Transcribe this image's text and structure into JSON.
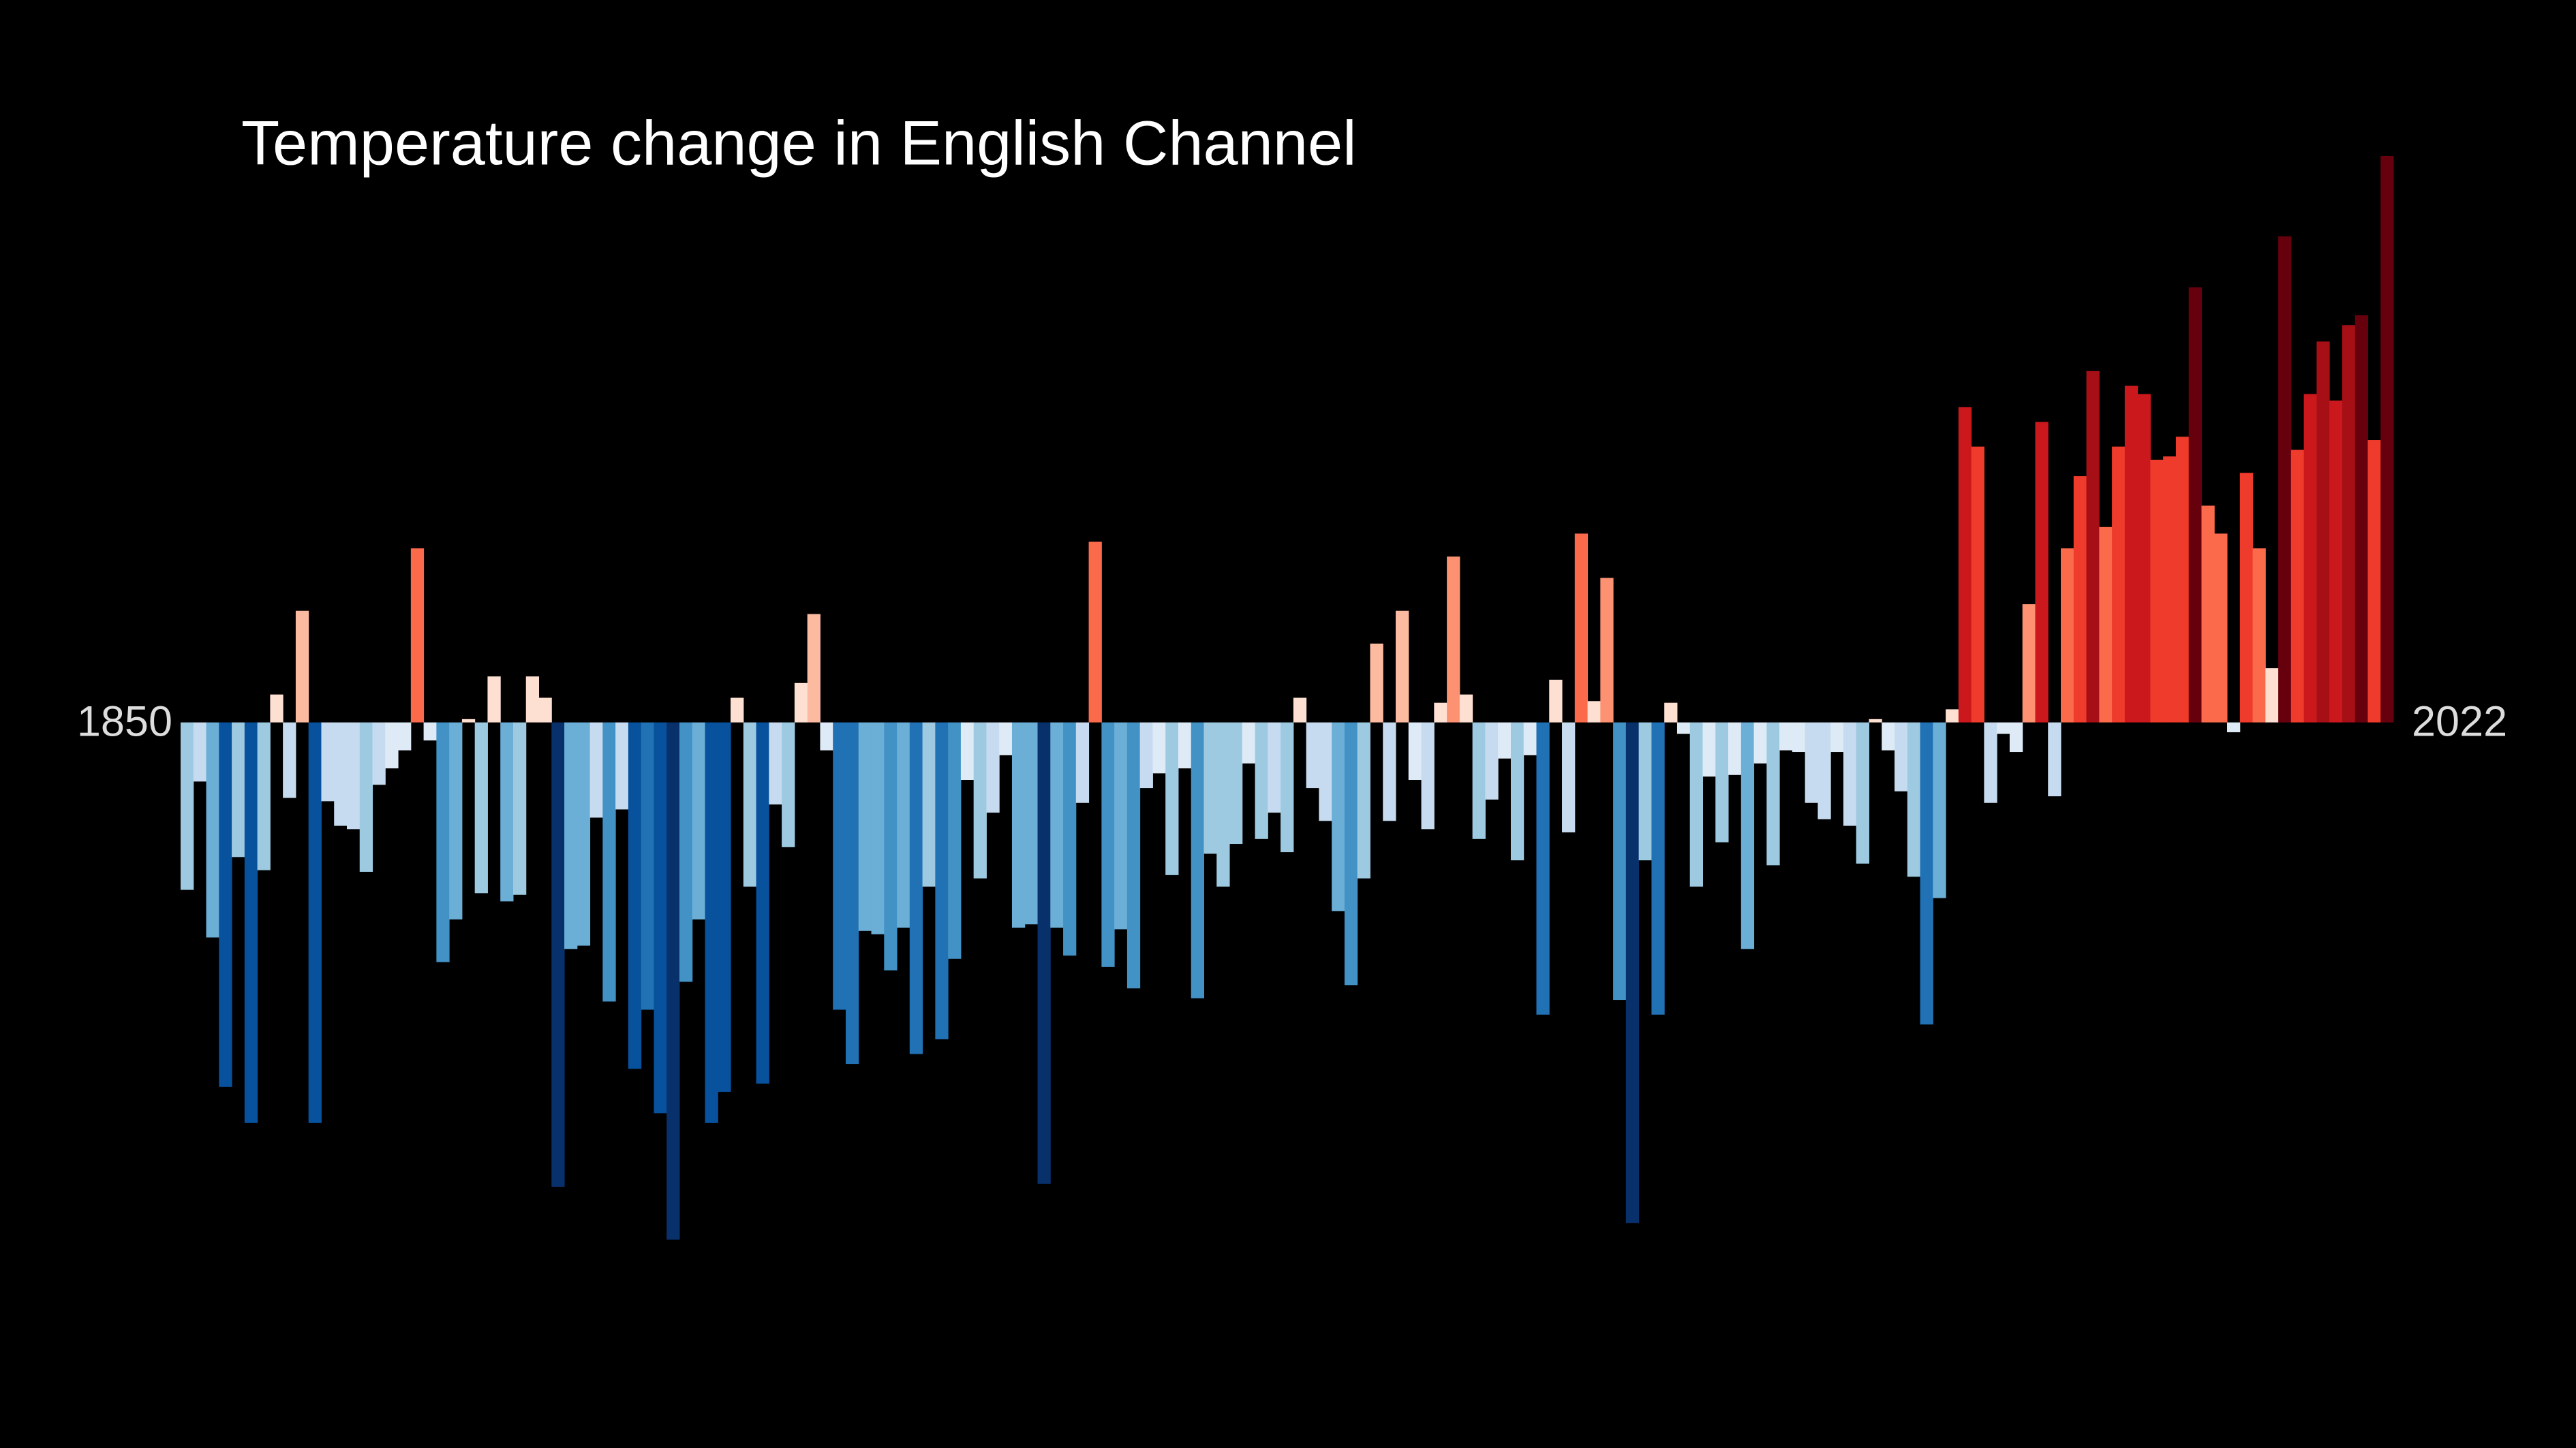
{
  "chart_data": {
    "type": "bar",
    "title": "Temperature change in English Channel",
    "categories": [
      "1850",
      null,
      null,
      null,
      null,
      null,
      null,
      null,
      null,
      null,
      null,
      null,
      null,
      null,
      null,
      null,
      null,
      null,
      null,
      null,
      null,
      null,
      null,
      null,
      null,
      null,
      null,
      null,
      null,
      null,
      null,
      null,
      null,
      null,
      null,
      null,
      null,
      null,
      null,
      null,
      null,
      null,
      null,
      null,
      null,
      null,
      null,
      null,
      null,
      null,
      null,
      null,
      null,
      null,
      null,
      null,
      null,
      null,
      null,
      null,
      null,
      null,
      null,
      null,
      null,
      null,
      null,
      null,
      null,
      null,
      null,
      null,
      null,
      null,
      null,
      null,
      null,
      null,
      null,
      null,
      null,
      null,
      null,
      null,
      null,
      null,
      null,
      null,
      null,
      null,
      null,
      null,
      null,
      null,
      null,
      null,
      null,
      null,
      null,
      null,
      null,
      null,
      null,
      null,
      null,
      null,
      null,
      null,
      null,
      null,
      null,
      null,
      null,
      null,
      null,
      null,
      null,
      null,
      null,
      null,
      null,
      null,
      null,
      null,
      null,
      null,
      null,
      null,
      null,
      null,
      null,
      null,
      null,
      null,
      null,
      null,
      null,
      null,
      null,
      null,
      null,
      null,
      null,
      null,
      null,
      null,
      null,
      null,
      null,
      null,
      null,
      null,
      null,
      null,
      null,
      null,
      null,
      null,
      null,
      null,
      null,
      null,
      null,
      null,
      null,
      null,
      null,
      null,
      null,
      null,
      null,
      null,
      "2022"
    ],
    "values": [
      -0.51,
      -0.18,
      -0.655,
      -1.11,
      -0.41,
      -1.22,
      -0.45,
      0.085,
      -0.23,
      0.34,
      -1.22,
      -0.24,
      -0.315,
      -0.325,
      -0.455,
      -0.19,
      -0.14,
      -0.085,
      0.53,
      -0.055,
      -0.73,
      -0.6,
      0.01,
      -0.52,
      0.14,
      -0.545,
      -0.525,
      0.14,
      0.075,
      -1.415,
      -0.69,
      -0.68,
      -0.29,
      -0.85,
      -0.265,
      -1.055,
      -0.875,
      -1.19,
      -1.575,
      -0.79,
      -0.6,
      -1.22,
      -1.125,
      0.075,
      -0.5,
      -1.1,
      -0.25,
      -0.38,
      0.12,
      0.33,
      -0.085,
      -0.875,
      -1.04,
      -0.635,
      -0.645,
      -0.755,
      -0.625,
      -1.01,
      -0.5,
      -0.965,
      -0.72,
      -0.175,
      -0.475,
      -0.275,
      -0.1,
      -0.625,
      -0.615,
      -1.405,
      -0.625,
      -0.71,
      -0.245,
      0.55,
      -0.745,
      -0.63,
      -0.81,
      -0.2,
      -0.155,
      -0.465,
      -0.14,
      -0.84,
      -0.4,
      -0.5,
      -0.37,
      -0.125,
      -0.355,
      -0.275,
      -0.395,
      0.075,
      -0.2,
      -0.3,
      -0.575,
      -0.8,
      -0.475,
      0.24,
      -0.3,
      0.34,
      -0.175,
      -0.325,
      0.06,
      0.505,
      0.085,
      -0.355,
      -0.235,
      -0.11,
      -0.42,
      -0.1,
      -0.89,
      0.13,
      -0.335,
      0.575,
      0.065,
      0.44,
      -0.845,
      -1.525,
      -0.42,
      -0.89,
      0.06,
      -0.035,
      -0.5,
      -0.165,
      -0.365,
      -0.16,
      -0.69,
      -0.125,
      -0.435,
      -0.085,
      -0.09,
      -0.245,
      -0.295,
      -0.09,
      -0.315,
      -0.43,
      0.01,
      -0.085,
      -0.21,
      -0.47,
      -0.92,
      -0.535,
      0.04,
      0.96,
      0.84,
      -0.245,
      -0.035,
      -0.09,
      0.36,
      0.915,
      -0.225,
      0.53,
      0.75,
      1.07,
      0.595,
      0.84,
      1.025,
      1.0,
      0.8,
      0.81,
      0.87,
      1.325,
      0.66,
      0.575,
      -0.03,
      0.76,
      0.53,
      0.165,
      1.48,
      0.83,
      1.0,
      1.16,
      0.98,
      1.21,
      1.24,
      0.86,
      1.725
    ],
    "colormap": [
      "#08306b",
      "#08519c",
      "#2171b5",
      "#4292c6",
      "#6baed6",
      "#9ecae1",
      "#c6dbef",
      "#deebf7",
      "#fee0d2",
      "#fcbba1",
      "#fc9272",
      "#fb6a4a",
      "#ef3b2c",
      "#cb181d",
      "#a50f15",
      "#67000d"
    ],
    "clim": [
      -1.4,
      1.4
    ],
    "background": "#000000",
    "text_color": "#ffffff"
  }
}
